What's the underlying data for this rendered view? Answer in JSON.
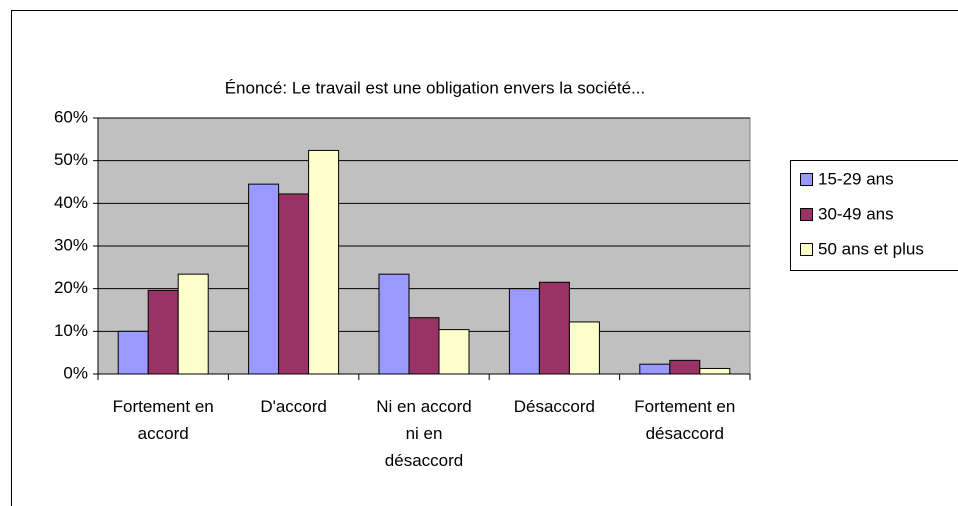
{
  "chart_data": {
    "type": "bar",
    "title": "Énoncé: Le travail est une obligation envers la société...",
    "categories": [
      "Fortement en accord",
      "D'accord",
      "Ni en accord ni en désaccord",
      "Désaccord",
      "Fortement en désaccord"
    ],
    "series": [
      {
        "name": "15-29 ans",
        "color": "#9999ff",
        "values": [
          10,
          44.5,
          23.4,
          20,
          2.3
        ]
      },
      {
        "name": "30-49 ans",
        "color": "#993366",
        "values": [
          19.6,
          42.2,
          13.2,
          21.5,
          3.2
        ]
      },
      {
        "name": "50 ans et plus",
        "color": "#ffffcc",
        "values": [
          23.4,
          52.4,
          10.4,
          12.2,
          1.3
        ]
      }
    ],
    "ylim": [
      0,
      60
    ],
    "yticks": [
      {
        "value": 0,
        "label": "0%"
      },
      {
        "value": 10,
        "label": "10%"
      },
      {
        "value": 20,
        "label": "20%"
      },
      {
        "value": 30,
        "label": "30%"
      },
      {
        "value": 40,
        "label": "40%"
      },
      {
        "value": 50,
        "label": "50%"
      },
      {
        "value": 60,
        "label": "60%"
      }
    ],
    "grid": true,
    "plot_background": "#c0c0c0",
    "legend": "right"
  }
}
